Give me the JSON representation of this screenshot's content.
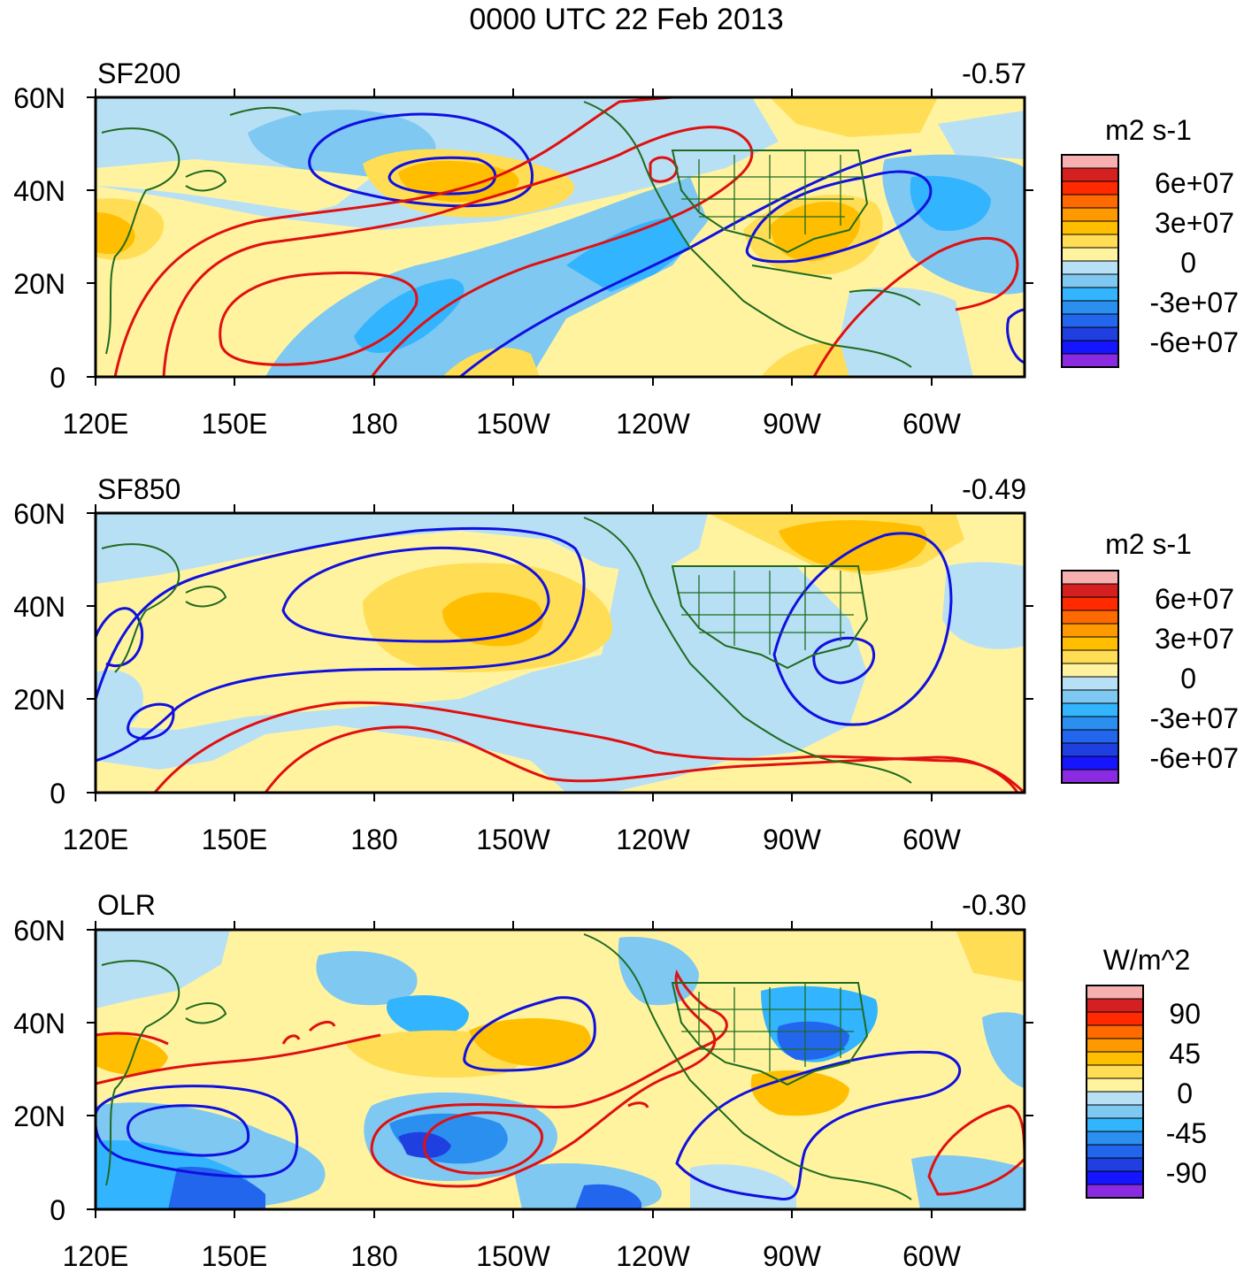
{
  "title": "0000 UTC 22 Feb 2013",
  "x_ticks": [
    "120E",
    "150E",
    "180",
    "150W",
    "120W",
    "90W",
    "60W"
  ],
  "y_ticks": [
    "60N",
    "40N",
    "20N",
    "0"
  ],
  "panels": [
    {
      "label": "SF200",
      "value": "-0.57",
      "colorbar": {
        "unit": "m2 s-1",
        "labels": [
          "6e+07",
          "3e+07",
          "0",
          "-3e+07",
          "-6e+07"
        ],
        "colors": [
          "#f7b0b0",
          "#d42020",
          "#ff2a00",
          "#ff6a00",
          "#ff9900",
          "#ffbf00",
          "#ffdd55",
          "#fff3a0",
          "#b8e0f5",
          "#7ec8f2",
          "#33b4ff",
          "#2b8ff0",
          "#2266ee",
          "#1f3fe0",
          "#1515ff",
          "#8a2be2"
        ]
      }
    },
    {
      "label": "SF850",
      "value": "-0.49",
      "colorbar": {
        "unit": "m2 s-1",
        "labels": [
          "6e+07",
          "3e+07",
          "0",
          "-3e+07",
          "-6e+07"
        ],
        "colors": [
          "#f7b0b0",
          "#d42020",
          "#ff2a00",
          "#ff6a00",
          "#ff9900",
          "#ffbf00",
          "#ffdd55",
          "#fff3a0",
          "#b8e0f5",
          "#7ec8f2",
          "#33b4ff",
          "#2b8ff0",
          "#2266ee",
          "#1f3fe0",
          "#1515ff",
          "#8a2be2"
        ]
      }
    },
    {
      "label": "OLR",
      "value": "-0.30",
      "colorbar": {
        "unit": "W/m^2",
        "labels": [
          "90",
          "45",
          "0",
          "-45",
          "-90"
        ],
        "colors": [
          "#f7b0b0",
          "#d42020",
          "#ff2a00",
          "#ff6a00",
          "#ff9900",
          "#ffbf00",
          "#ffdd55",
          "#fff3a0",
          "#b8e0f5",
          "#7ec8f2",
          "#33b4ff",
          "#2b8ff0",
          "#2266ee",
          "#1f3fe0",
          "#1515ff",
          "#8a2be2"
        ]
      }
    }
  ],
  "colors": {
    "coast": "#1f6b1f",
    "positive_contour": "#e01010",
    "negative_contour": "#1010e0",
    "yellow": "#fff3a0",
    "lightblue": "#b8e0f5",
    "blue": "#7ec8f2",
    "orange": "#ffbf00"
  }
}
